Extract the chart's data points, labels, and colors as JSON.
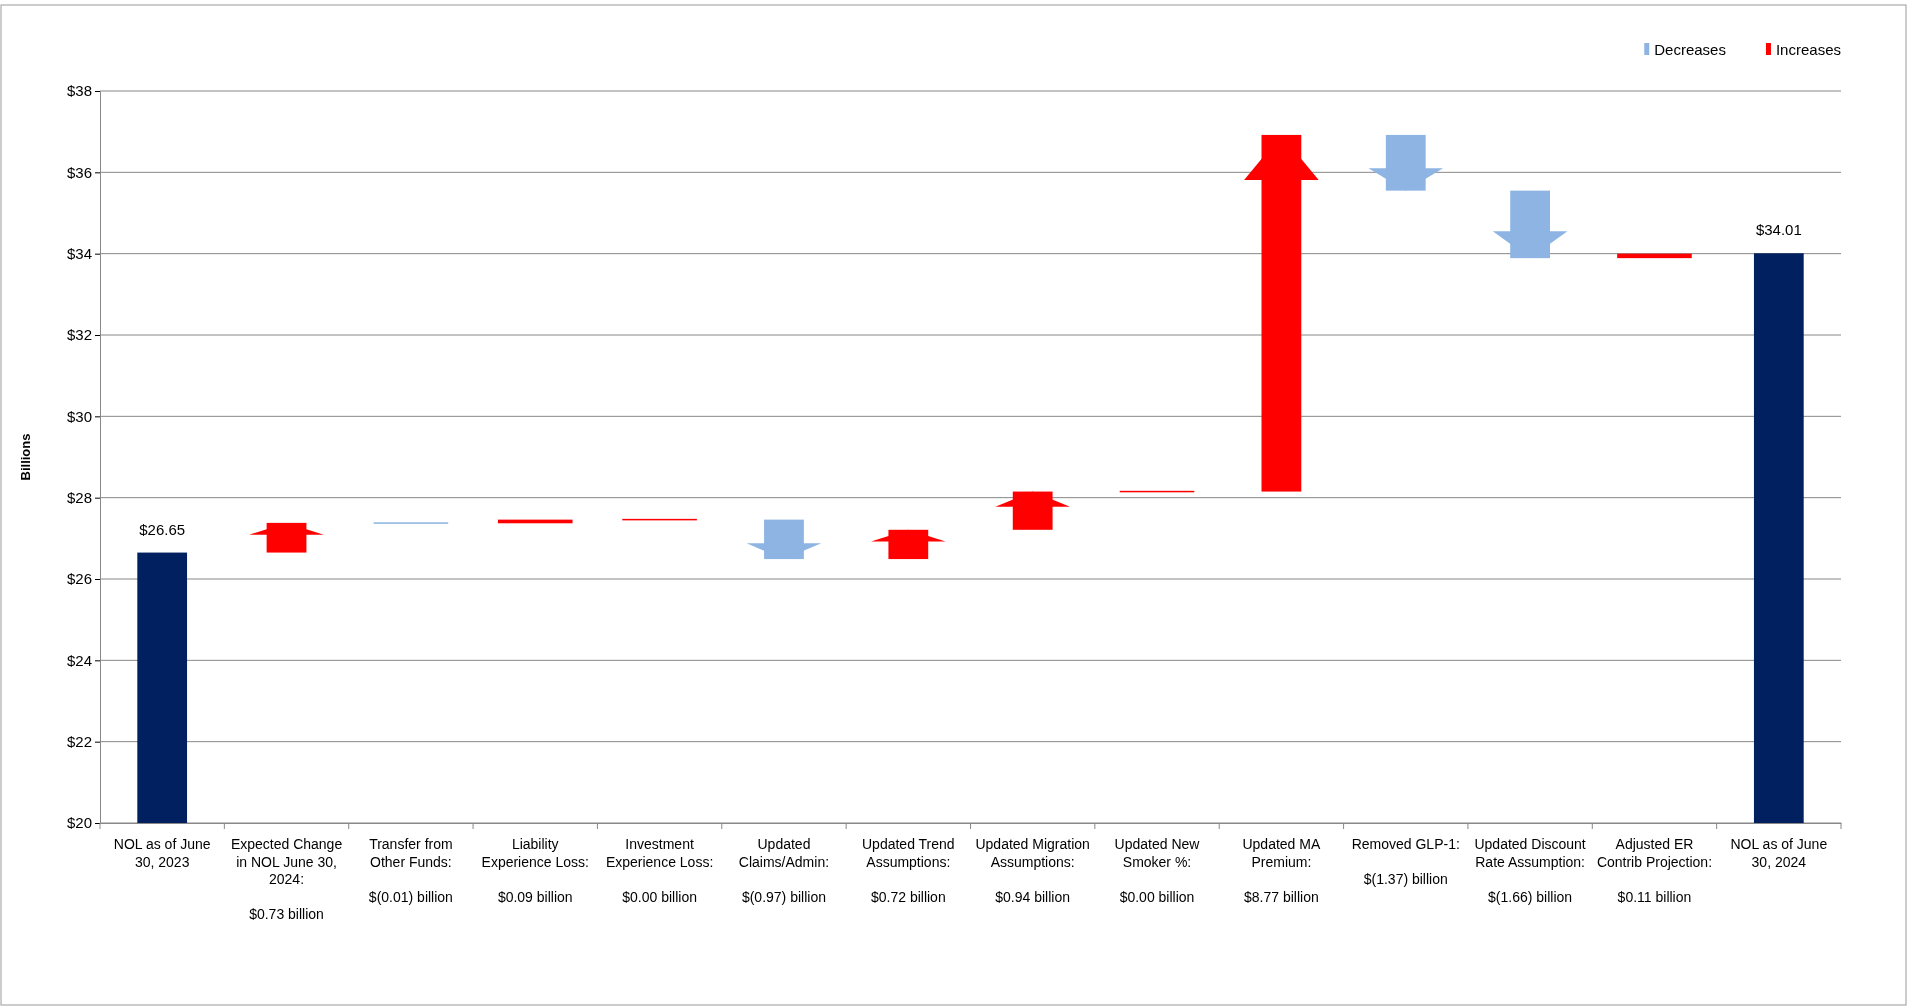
{
  "chart_data": {
    "type": "bar",
    "ylabel": "Billions",
    "categories": [
      "NOL as of June 30, 2023",
      "Expected Change in NOL June 30, 2024: $0.73 billion",
      "Transfer from Other Funds: $(0.01) billion",
      "Liability Experience Loss: $0.09 billion",
      "Investment Experience Loss: $0.00 billion",
      "Updated Claims/Admin: $(0.97) billion",
      "Updated Trend Assumptions: $0.72 billion",
      "Updated Migration Assumptions: $0.94 billion",
      "Updated New Smoker %: $0.00 billion",
      "Updated MA Premium: $8.77 billion",
      "Removed GLP-1: $(1.37) billion",
      "Updated Discount Rate Assumption: $(1.66) billion",
      "Adjusted ER Contrib Projection: $0.11 billion",
      "NOL as of June 30, 2024"
    ],
    "series": [
      {
        "color": "#002060",
        "values": [
          26.65,
          null,
          null,
          null,
          null,
          null,
          null,
          null,
          null,
          null,
          null,
          null,
          null,
          34.01
        ]
      },
      {
        "name": "Decreases",
        "color": "#8db4e2",
        "values": [
          null,
          null,
          -0.01,
          null,
          null,
          -0.97,
          null,
          null,
          null,
          null,
          -1.37,
          -1.66,
          null,
          null
        ],
        "base": [
          null,
          null,
          27.38,
          null,
          null,
          27.46,
          null,
          null,
          null,
          null,
          36.92,
          35.55,
          null,
          null
        ]
      },
      {
        "name": "Increases",
        "color": "#ff0000",
        "values": [
          null,
          0.73,
          null,
          0.09,
          0.0,
          null,
          0.72,
          0.94,
          0.0,
          8.77,
          null,
          null,
          0.11,
          null
        ],
        "base": [
          null,
          26.65,
          null,
          27.37,
          27.46,
          null,
          26.49,
          27.21,
          28.15,
          28.15,
          null,
          null,
          33.89,
          null
        ]
      }
    ],
    "value_labels": [
      "$26.65",
      null,
      null,
      null,
      null,
      null,
      null,
      null,
      null,
      null,
      null,
      null,
      null,
      "$34.01"
    ],
    "ylim": [
      20,
      38
    ],
    "yticks": [
      {
        "value": 20,
        "label": "$20"
      },
      {
        "value": 22,
        "label": "$22"
      },
      {
        "value": 24,
        "label": "$24"
      },
      {
        "value": 26,
        "label": "$26"
      },
      {
        "value": 28,
        "label": "$28"
      },
      {
        "value": 30,
        "label": "$30"
      },
      {
        "value": 32,
        "label": "$32"
      },
      {
        "value": 34,
        "label": "$34"
      },
      {
        "value": 36,
        "label": "$36"
      },
      {
        "value": 38,
        "label": "$38"
      }
    ],
    "grid": "y",
    "legend": "top right"
  }
}
